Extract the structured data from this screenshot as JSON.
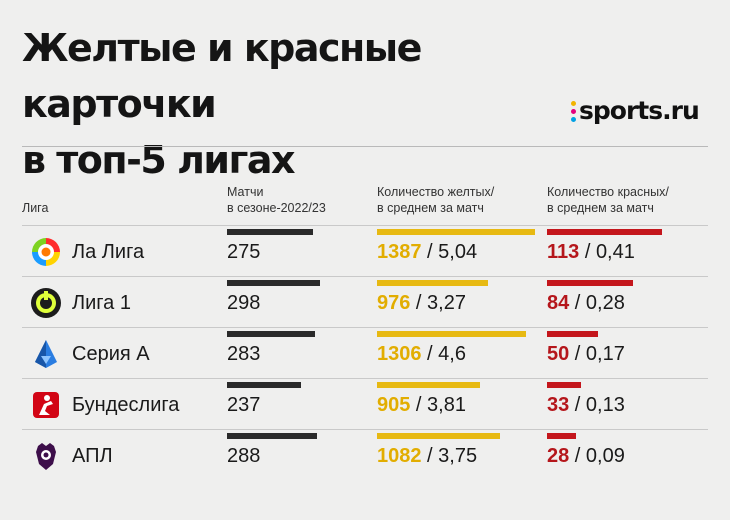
{
  "title_line1": "Желтые и красные карточки",
  "title_line2": "в топ-5 лигах",
  "brand": "sports.ru",
  "colors": {
    "yellow": "#e7b912",
    "red": "#c4161c",
    "dark": "#2a2a2a",
    "background": "#efefee"
  },
  "headers": {
    "league": "Лига",
    "matches_1": "Матчи",
    "matches_2": "в сезоне-2022/23",
    "yellow_1": "Количество желтых/",
    "yellow_2": "в среднем за матч",
    "red_1": "Количество красных/",
    "red_2": "в среднем за матч"
  },
  "chart_data": {
    "type": "table",
    "title": "Желтые и красные карточки в топ-5 лигах",
    "columns": [
      "Лига",
      "Матчи в сезоне-2022/23",
      "Количество желтых/в среднем за матч",
      "Количество красных/в среднем за матч"
    ],
    "rows": [
      {
        "league": "Ла Лига",
        "icon": "laliga-logo-icon",
        "matches": 275,
        "yellow": 1387,
        "yellow_avg": "5,04",
        "red": 113,
        "red_avg": "0,41"
      },
      {
        "league": "Лига 1",
        "icon": "ligue1-logo-icon",
        "matches": 298,
        "yellow": 976,
        "yellow_avg": "3,27",
        "red": 84,
        "red_avg": "0,28"
      },
      {
        "league": "Серия А",
        "icon": "seriea-logo-icon",
        "matches": 283,
        "yellow": 1306,
        "yellow_avg": "4,6",
        "red": 50,
        "red_avg": "0,17"
      },
      {
        "league": "Бундеслига",
        "icon": "bundesliga-logo-icon",
        "matches": 237,
        "yellow": 905,
        "yellow_avg": "3,81",
        "red": 33,
        "red_avg": "0,13"
      },
      {
        "league": "АПЛ",
        "icon": "premier-league-logo-icon",
        "matches": 288,
        "yellow": 1082,
        "yellow_avg": "3,75",
        "red": 28,
        "red_avg": "0,09"
      }
    ]
  }
}
